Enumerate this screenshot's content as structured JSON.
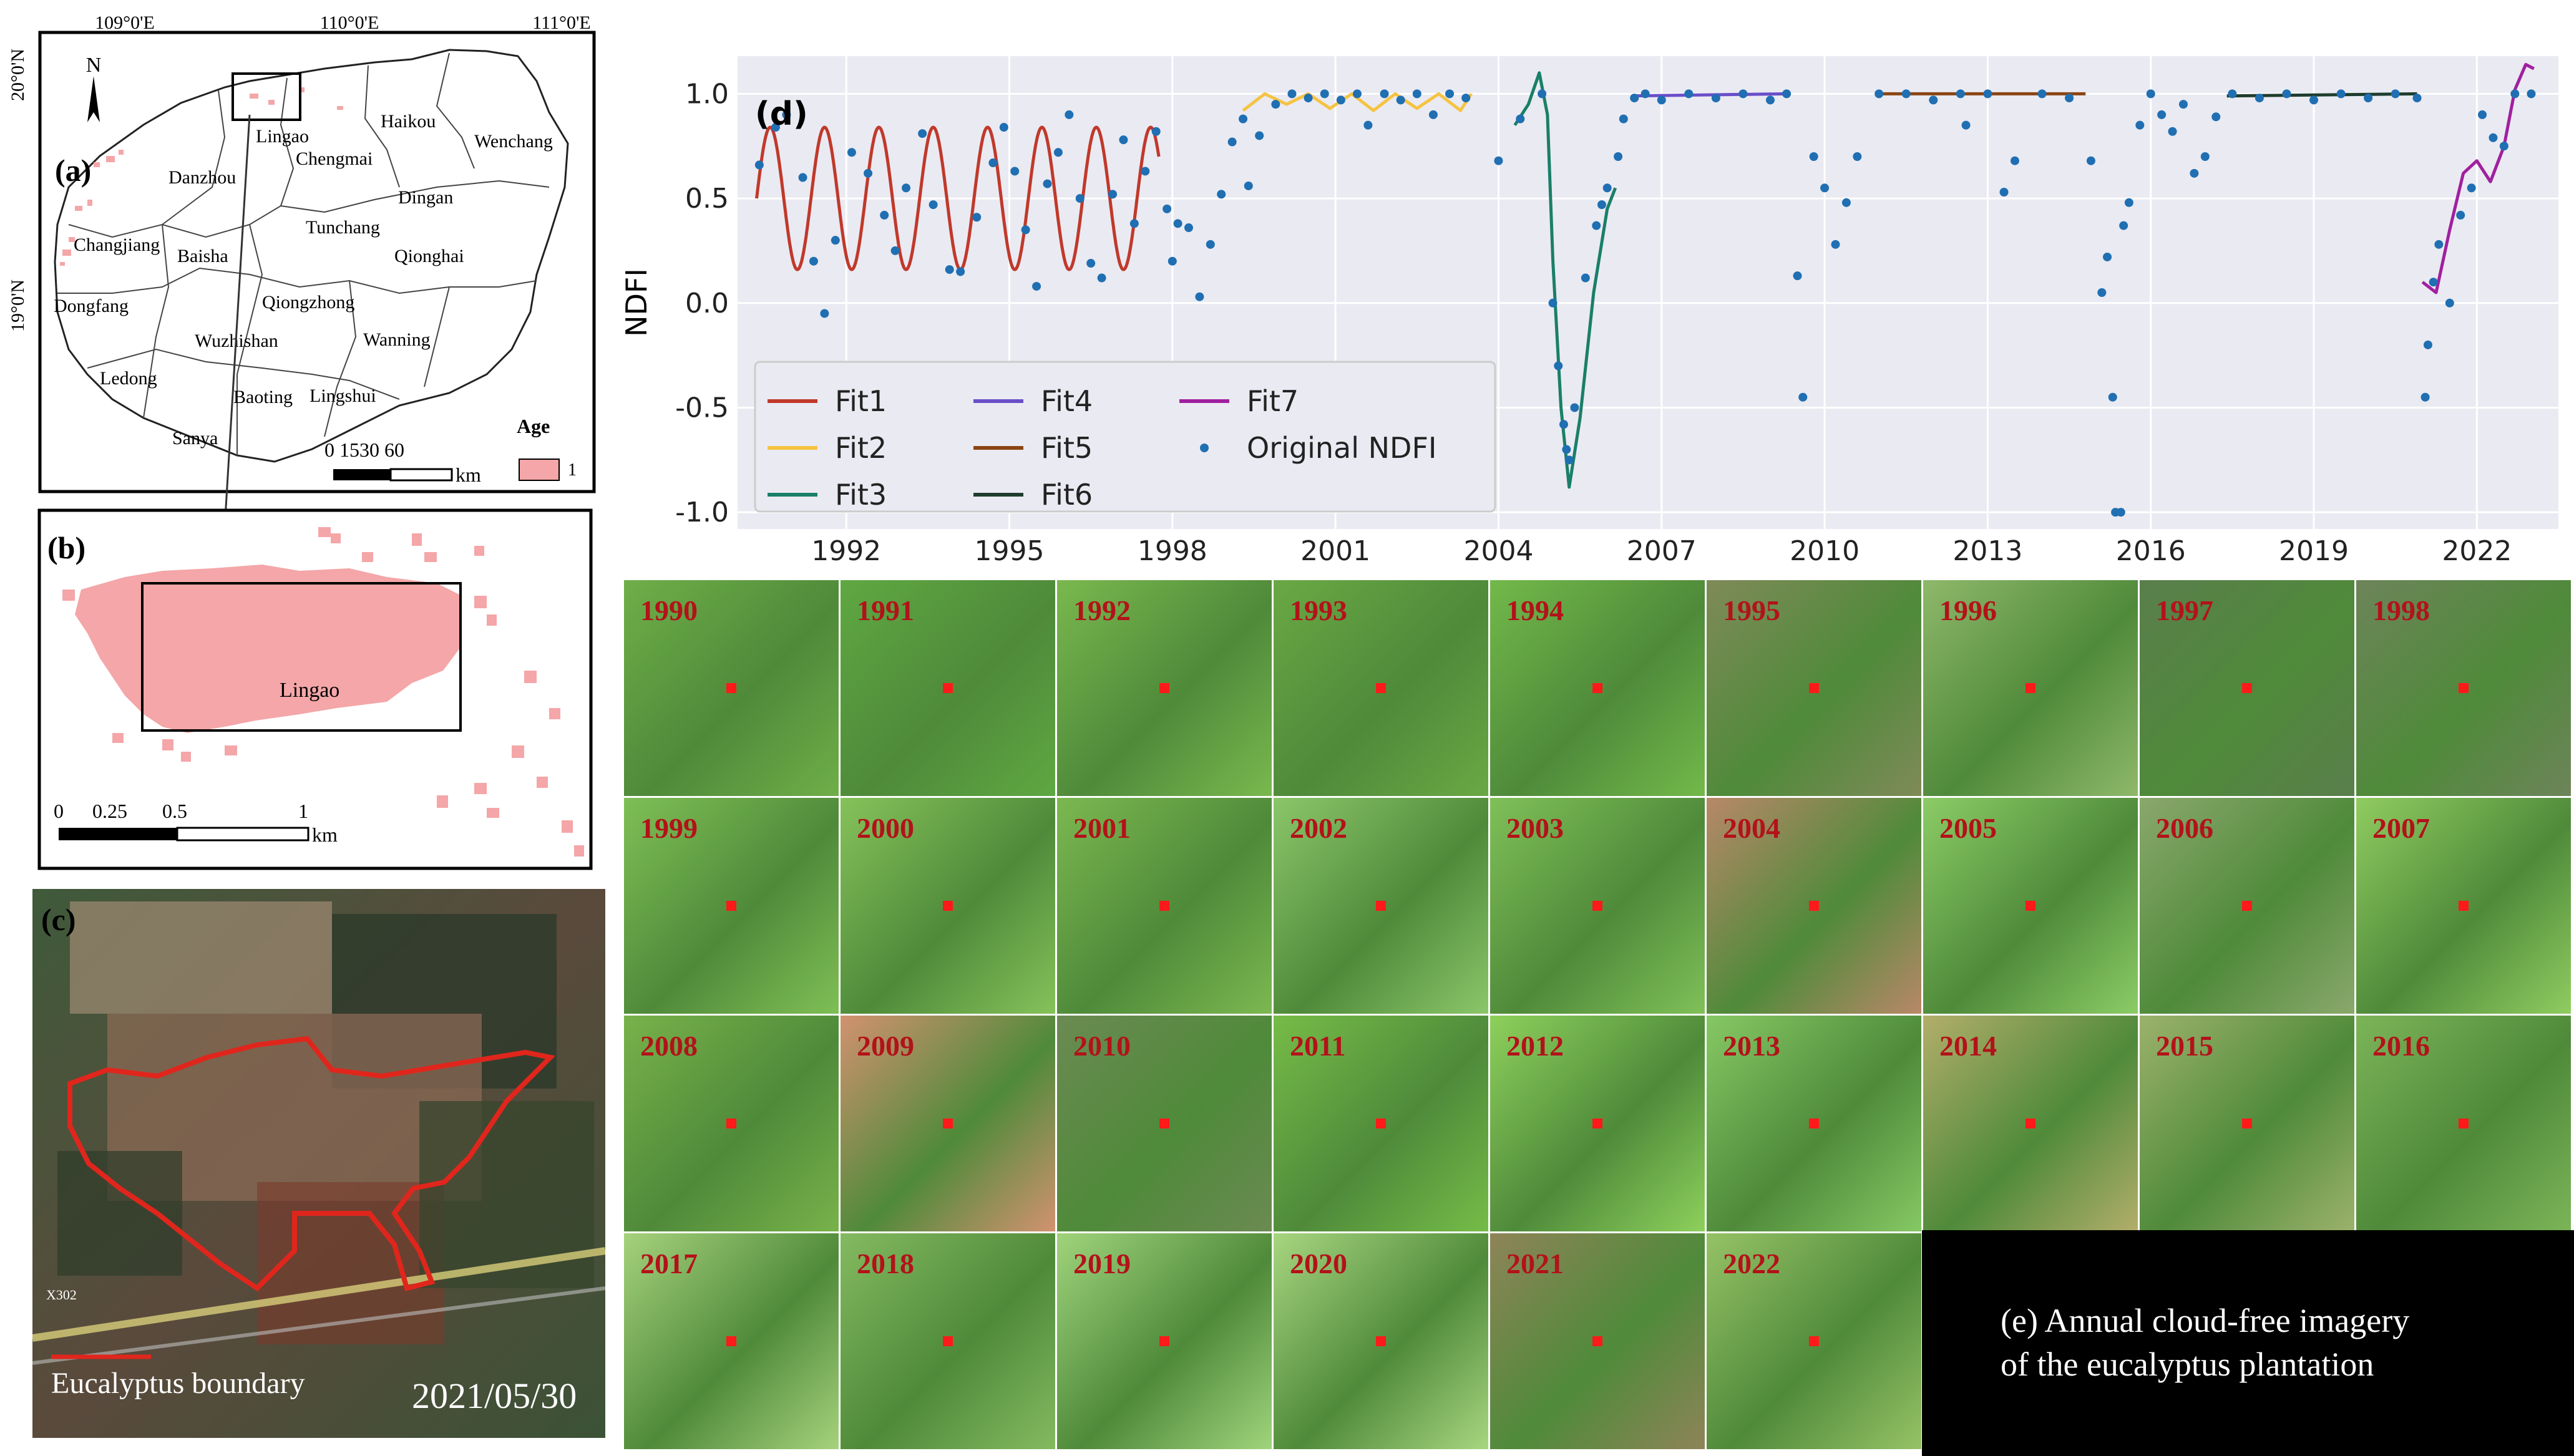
{
  "panel_a": {
    "label": "(a)",
    "lon_ticks": [
      "109°0'E",
      "110°0'E",
      "111°0'E"
    ],
    "lat_ticks": [
      "20°0'N",
      "19°0'N"
    ],
    "north": "N",
    "places": [
      "Lingao",
      "Haikou",
      "Wenchang",
      "Danzhou",
      "Chengmai",
      "Dingan",
      "Tunchang",
      "Qionghai",
      "Changjiang",
      "Baisha",
      "Dongfang",
      "Qiongzhong",
      "Wuzhishan",
      "Wanning",
      "Ledong",
      "Baoting",
      "Lingshui",
      "Sanya"
    ],
    "scale_numbers": "0 1530    60",
    "scale_unit": "km",
    "legend_title": "Age",
    "legend_value": "1",
    "colors": {
      "plantation": "#f4a6a8"
    }
  },
  "panel_b": {
    "label": "(b)",
    "place": "Lingao",
    "scale_ticks": [
      "0",
      "0.25",
      "0.5",
      "1"
    ],
    "scale_unit": "km"
  },
  "panel_c": {
    "label": "(c)",
    "legend": "Eucalyptus boundary",
    "date": "2021/05/30",
    "road_label": "X302"
  },
  "panel_d": {
    "label": "(d)",
    "colors": {
      "fit1": "#c0392b",
      "fit2": "#f6c342",
      "fit3": "#1a7f68",
      "fit4": "#6a4fc8",
      "fit5": "#8b4513",
      "fit6": "#1f3d2e",
      "fit7": "#a0209f",
      "obs": "#1f6fb2"
    }
  },
  "chart_data": {
    "type": "line+scatter",
    "title": "",
    "xlabel": "",
    "ylabel": "NDFI",
    "xlim": [
      1990,
      2023.5
    ],
    "ylim": [
      -1.08,
      1.18
    ],
    "x_ticks": [
      "1992",
      "1995",
      "1998",
      "2001",
      "2004",
      "2007",
      "2010",
      "2013",
      "2016",
      "2019",
      "2022"
    ],
    "y_ticks": [
      "1.0",
      "0.5",
      "0.0",
      "-0.5",
      "-1.0"
    ],
    "legend": [
      "Fit1",
      "Fit2",
      "Fit3",
      "Fit4",
      "Fit5",
      "Fit6",
      "Fit7",
      "Original NDFI"
    ],
    "series": [
      {
        "name": "Fit1",
        "kind": "sine",
        "start": 1990.35,
        "end": 1997.75,
        "mean": 0.5,
        "amp": 0.34,
        "period": 1.0,
        "phase": 1990.35
      },
      {
        "name": "Fit2",
        "points": [
          [
            1999.3,
            0.92
          ],
          [
            1999.7,
            1.0
          ],
          [
            2000.1,
            0.95
          ],
          [
            2000.5,
            1.0
          ],
          [
            2000.9,
            0.93
          ],
          [
            2001.3,
            1.0
          ],
          [
            2001.7,
            0.92
          ],
          [
            2002.1,
            1.0
          ],
          [
            2002.5,
            0.93
          ],
          [
            2002.9,
            1.0
          ],
          [
            2003.3,
            0.92
          ],
          [
            2003.5,
            1.0
          ]
        ]
      },
      {
        "name": "Fit3",
        "points": [
          [
            2004.3,
            0.85
          ],
          [
            2004.55,
            0.95
          ],
          [
            2004.75,
            1.1
          ],
          [
            2004.9,
            0.9
          ],
          [
            2005.0,
            0.2
          ],
          [
            2005.15,
            -0.5
          ],
          [
            2005.3,
            -0.88
          ],
          [
            2005.5,
            -0.55
          ],
          [
            2005.75,
            0.05
          ],
          [
            2006.0,
            0.45
          ],
          [
            2006.15,
            0.55
          ]
        ]
      },
      {
        "name": "Fit4",
        "points": [
          [
            2006.45,
            0.99
          ],
          [
            2009.3,
            1.0
          ]
        ]
      },
      {
        "name": "Fit5",
        "points": [
          [
            2011.0,
            1.0
          ],
          [
            2014.8,
            1.0
          ]
        ]
      },
      {
        "name": "Fit6",
        "points": [
          [
            2017.4,
            0.99
          ],
          [
            2020.9,
            1.0
          ]
        ]
      },
      {
        "name": "Fit7",
        "points": [
          [
            2021.0,
            0.1
          ],
          [
            2021.25,
            0.05
          ],
          [
            2021.5,
            0.35
          ],
          [
            2021.75,
            0.62
          ],
          [
            2022.0,
            0.68
          ],
          [
            2022.25,
            0.58
          ],
          [
            2022.5,
            0.75
          ],
          [
            2022.7,
            1.02
          ],
          [
            2022.9,
            1.14
          ],
          [
            2023.05,
            1.12
          ]
        ]
      },
      {
        "name": "Original NDFI",
        "points": [
          [
            1990.4,
            0.66
          ],
          [
            1990.7,
            0.84
          ],
          [
            1990.9,
            0.9
          ],
          [
            1991.2,
            0.6
          ],
          [
            1991.4,
            0.2
          ],
          [
            1991.6,
            -0.05
          ],
          [
            1991.8,
            0.3
          ],
          [
            1992.1,
            0.72
          ],
          [
            1992.4,
            0.62
          ],
          [
            1992.7,
            0.42
          ],
          [
            1992.9,
            0.25
          ],
          [
            1993.1,
            0.55
          ],
          [
            1993.4,
            0.81
          ],
          [
            1993.6,
            0.47
          ],
          [
            1993.9,
            0.16
          ],
          [
            1994.1,
            0.15
          ],
          [
            1994.4,
            0.41
          ],
          [
            1994.7,
            0.67
          ],
          [
            1994.9,
            0.84
          ],
          [
            1995.1,
            0.63
          ],
          [
            1995.3,
            0.35
          ],
          [
            1995.5,
            0.08
          ],
          [
            1995.7,
            0.57
          ],
          [
            1995.9,
            0.72
          ],
          [
            1996.1,
            0.9
          ],
          [
            1996.3,
            0.5
          ],
          [
            1996.5,
            0.19
          ],
          [
            1996.7,
            0.12
          ],
          [
            1996.9,
            0.52
          ],
          [
            1997.1,
            0.78
          ],
          [
            1997.3,
            0.38
          ],
          [
            1997.5,
            0.63
          ],
          [
            1997.7,
            0.82
          ],
          [
            1997.9,
            0.45
          ],
          [
            1998.0,
            0.2
          ],
          [
            1998.1,
            0.38
          ],
          [
            1998.3,
            0.36
          ],
          [
            1998.5,
            0.03
          ],
          [
            1998.7,
            0.28
          ],
          [
            1998.9,
            0.52
          ],
          [
            1999.1,
            0.77
          ],
          [
            1999.3,
            0.88
          ],
          [
            1999.4,
            0.56
          ],
          [
            1999.6,
            0.8
          ],
          [
            1999.9,
            0.95
          ],
          [
            2000.2,
            1.0
          ],
          [
            2000.5,
            0.98
          ],
          [
            2000.8,
            1.0
          ],
          [
            2001.1,
            0.97
          ],
          [
            2001.4,
            1.0
          ],
          [
            2001.6,
            0.85
          ],
          [
            2001.9,
            1.0
          ],
          [
            2002.2,
            0.97
          ],
          [
            2002.5,
            1.0
          ],
          [
            2002.8,
            0.9
          ],
          [
            2003.1,
            1.0
          ],
          [
            2003.4,
            0.98
          ],
          [
            2004.0,
            0.68
          ],
          [
            2004.4,
            0.88
          ],
          [
            2004.8,
            1.0
          ],
          [
            2005.0,
            0.0
          ],
          [
            2005.1,
            -0.3
          ],
          [
            2005.2,
            -0.58
          ],
          [
            2005.25,
            -0.7
          ],
          [
            2005.3,
            -0.75
          ],
          [
            2005.4,
            -0.5
          ],
          [
            2005.6,
            0.12
          ],
          [
            2005.8,
            0.37
          ],
          [
            2005.9,
            0.47
          ],
          [
            2006.0,
            0.55
          ],
          [
            2006.2,
            0.7
          ],
          [
            2006.3,
            0.88
          ],
          [
            2006.5,
            0.98
          ],
          [
            2006.7,
            1.0
          ],
          [
            2007.0,
            0.97
          ],
          [
            2007.5,
            1.0
          ],
          [
            2008.0,
            0.98
          ],
          [
            2008.5,
            1.0
          ],
          [
            2009.0,
            0.97
          ],
          [
            2009.3,
            1.0
          ],
          [
            2009.5,
            0.13
          ],
          [
            2009.6,
            -0.45
          ],
          [
            2009.8,
            0.7
          ],
          [
            2010.0,
            0.55
          ],
          [
            2010.2,
            0.28
          ],
          [
            2010.4,
            0.48
          ],
          [
            2010.6,
            0.7
          ],
          [
            2011.0,
            1.0
          ],
          [
            2011.5,
            1.0
          ],
          [
            2012.0,
            0.97
          ],
          [
            2012.5,
            1.0
          ],
          [
            2012.6,
            0.85
          ],
          [
            2013.0,
            1.0
          ],
          [
            2013.3,
            0.53
          ],
          [
            2013.5,
            0.68
          ],
          [
            2014.0,
            1.0
          ],
          [
            2014.5,
            0.98
          ],
          [
            2014.9,
            0.68
          ],
          [
            2015.1,
            0.05
          ],
          [
            2015.2,
            0.22
          ],
          [
            2015.3,
            -0.45
          ],
          [
            2015.35,
            -1.0
          ],
          [
            2015.45,
            -1.0
          ],
          [
            2015.5,
            0.37
          ],
          [
            2015.6,
            0.48
          ],
          [
            2015.8,
            0.85
          ],
          [
            2016.0,
            1.0
          ],
          [
            2016.2,
            0.9
          ],
          [
            2016.4,
            0.82
          ],
          [
            2016.6,
            0.95
          ],
          [
            2016.8,
            0.62
          ],
          [
            2017.0,
            0.7
          ],
          [
            2017.2,
            0.89
          ],
          [
            2017.5,
            1.0
          ],
          [
            2018.0,
            0.98
          ],
          [
            2018.5,
            1.0
          ],
          [
            2019.0,
            0.97
          ],
          [
            2019.5,
            1.0
          ],
          [
            2020.0,
            0.98
          ],
          [
            2020.5,
            1.0
          ],
          [
            2020.9,
            0.98
          ],
          [
            2021.05,
            -0.45
          ],
          [
            2021.1,
            -0.2
          ],
          [
            2021.2,
            0.1
          ],
          [
            2021.3,
            0.28
          ],
          [
            2021.5,
            0.0
          ],
          [
            2021.7,
            0.42
          ],
          [
            2021.9,
            0.55
          ],
          [
            2022.1,
            0.9
          ],
          [
            2022.3,
            0.79
          ],
          [
            2022.5,
            0.75
          ],
          [
            2022.7,
            1.0
          ],
          [
            2023.0,
            1.0
          ]
        ]
      }
    ]
  },
  "panel_e": {
    "caption_line1": "(e) Annual cloud-free imagery",
    "caption_line2": "of the eucalyptus plantation",
    "years": [
      "1990",
      "1991",
      "1992",
      "1993",
      "1994",
      "1995",
      "1996",
      "1997",
      "1998",
      "1999",
      "2000",
      "2001",
      "2002",
      "2003",
      "2004",
      "2005",
      "2006",
      "2007",
      "2008",
      "2009",
      "2010",
      "2011",
      "2012",
      "2013",
      "2014",
      "2015",
      "2016",
      "2017",
      "2018",
      "2019",
      "2020",
      "2021",
      "2022"
    ],
    "tile_colors": [
      "#6fae48",
      "#5fa842",
      "#7ab84e",
      "#6aa844",
      "#72b94a",
      "#7f8a58",
      "#8fb86a",
      "#5a7e4c",
      "#6d845a",
      "#7fbf55",
      "#86c25a",
      "#7cb850",
      "#8cc66a",
      "#80c058",
      "#b88868",
      "#8ccc66",
      "#8aa86c",
      "#90cc60",
      "#78b24a",
      "#d29270",
      "#6b8a52",
      "#76bc48",
      "#8ed05c",
      "#86c864",
      "#b2ae6a",
      "#9cb26c",
      "#7cb458",
      "#a6d27c",
      "#84ba60",
      "#a0d47c",
      "#a8d680",
      "#8e8458",
      "#96c266"
    ],
    "marker_color": "#ff1a1a",
    "year_color": "#b3121a"
  }
}
